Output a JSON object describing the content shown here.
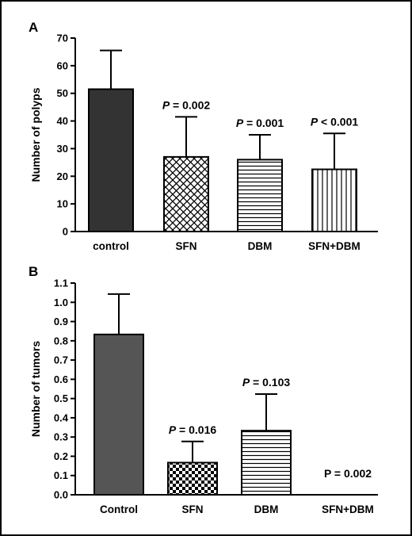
{
  "chart_data": [
    {
      "panel_label": "A",
      "type": "bar",
      "ylabel": "Number of polyps",
      "ylim": [
        0,
        70
      ],
      "yticks": [
        "0",
        "10",
        "20",
        "30",
        "40",
        "50",
        "60",
        "70"
      ],
      "categories": [
        "control",
        "SFN",
        "DBM",
        "SFN+DBM"
      ],
      "values": [
        51.5,
        27,
        26,
        22.5
      ],
      "errors": [
        14,
        14.5,
        9,
        13
      ],
      "pvalues": [
        {
          "italic": "",
          "rest": ""
        },
        {
          "italic": "P",
          "rest": " = 0.002"
        },
        {
          "italic": "P",
          "rest": " = 0.001"
        },
        {
          "italic": "P",
          "rest": " < 0.001"
        }
      ],
      "patterns": [
        "solid-dark",
        "crosshatch",
        "horizontal-lines",
        "vertical-lines"
      ],
      "bar_colors": [
        "#333333",
        "#ffffff",
        "#ffffff",
        "#ffffff"
      ]
    },
    {
      "panel_label": "B",
      "type": "bar",
      "ylabel": "Number of tumors",
      "ylim": [
        0,
        1.1
      ],
      "yticks": [
        "0.0",
        "0.1",
        "0.2",
        "0.3",
        "0.4",
        "0.5",
        "0.6",
        "0.7",
        "0.8",
        "0.9",
        "1.0",
        "1.1"
      ],
      "categories": [
        "Control",
        "SFN",
        "DBM",
        "SFN+DBM"
      ],
      "values": [
        0.833,
        0.167,
        0.333,
        0.0
      ],
      "errors": [
        0.21,
        0.11,
        0.19,
        0
      ],
      "pvalues": [
        {
          "italic": "",
          "rest": ""
        },
        {
          "italic": "P",
          "rest": " = 0.016"
        },
        {
          "italic": "P",
          "rest": " = 0.103"
        },
        {
          "italic": "",
          "rest": "P = 0.002"
        }
      ],
      "patterns": [
        "solid-gray",
        "checkerboard",
        "horizontal-lines",
        "none"
      ],
      "bar_colors": [
        "#555555",
        "#ffffff",
        "#ffffff",
        "#ffffff"
      ]
    }
  ]
}
